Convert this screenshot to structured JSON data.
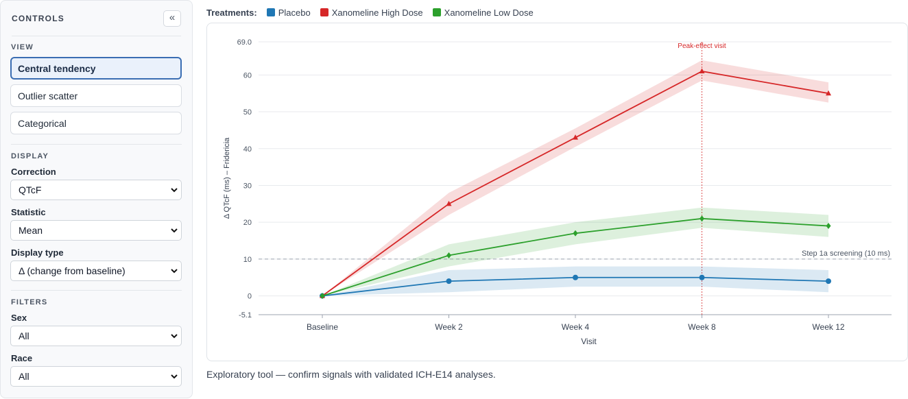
{
  "sidebar": {
    "title": "CONTROLS",
    "collapse_glyph": "«",
    "view": {
      "label": "VIEW",
      "options": [
        "Central tendency",
        "Outlier scatter",
        "Categorical"
      ],
      "active": "Central tendency"
    },
    "display": {
      "label": "DISPLAY",
      "correction": {
        "label": "Correction",
        "value": "QTcF"
      },
      "statistic": {
        "label": "Statistic",
        "value": "Mean"
      },
      "display_type": {
        "label": "Display type",
        "value": "Δ (change from baseline)"
      }
    },
    "filters": {
      "label": "FILTERS",
      "sex": {
        "label": "Sex",
        "value": "All"
      },
      "race": {
        "label": "Race",
        "value": "All"
      }
    }
  },
  "legend": {
    "title": "Treatments:",
    "items": [
      {
        "name": "Placebo",
        "color": "#1f77b4"
      },
      {
        "name": "Xanomeline High Dose",
        "color": "#d62728"
      },
      {
        "name": "Xanomeline Low Dose",
        "color": "#2ca02c"
      }
    ]
  },
  "chart_data": {
    "type": "line",
    "categories": [
      "Baseline",
      "Week 2",
      "Week 4",
      "Week 8",
      "Week 12"
    ],
    "xlabel": "Visit",
    "ylabel": "Δ QTcF (ms) – Fridericia",
    "ylim": [
      -5.1,
      69.0
    ],
    "yticks": [
      -5.1,
      0,
      10,
      20,
      30,
      40,
      50,
      60,
      69.0
    ],
    "ytick_labels": [
      "-5.1",
      "0",
      "10",
      "20",
      "30",
      "40",
      "50",
      "60",
      "69.0"
    ],
    "grid": "horizontal",
    "series": [
      {
        "name": "Placebo",
        "color": "#1f77b4",
        "marker": "circle",
        "values": [
          0,
          4,
          5,
          5,
          4
        ],
        "lower": [
          0,
          1,
          2.5,
          2.5,
          1
        ],
        "upper": [
          0,
          7,
          8,
          8,
          7
        ]
      },
      {
        "name": "Xanomeline High Dose",
        "color": "#d62728",
        "marker": "triangle",
        "values": [
          0,
          25,
          43,
          61,
          55
        ],
        "lower": [
          0,
          22,
          40.5,
          58.5,
          52.5
        ],
        "upper": [
          0,
          28,
          45.5,
          64,
          58
        ]
      },
      {
        "name": "Xanomeline Low Dose",
        "color": "#2ca02c",
        "marker": "diamond",
        "values": [
          0,
          11,
          17,
          21,
          19
        ],
        "lower": [
          0,
          8,
          14,
          18.5,
          16
        ],
        "upper": [
          0,
          14,
          20,
          24,
          22
        ]
      }
    ],
    "reference_line": {
      "y": 10,
      "label": "Step 1a screening (10 ms)"
    },
    "vertical_marker": {
      "category": "Week 8",
      "label": "Peak-effect visit"
    }
  },
  "footnote": "Exploratory tool — confirm signals with validated ICH-E14 analyses."
}
